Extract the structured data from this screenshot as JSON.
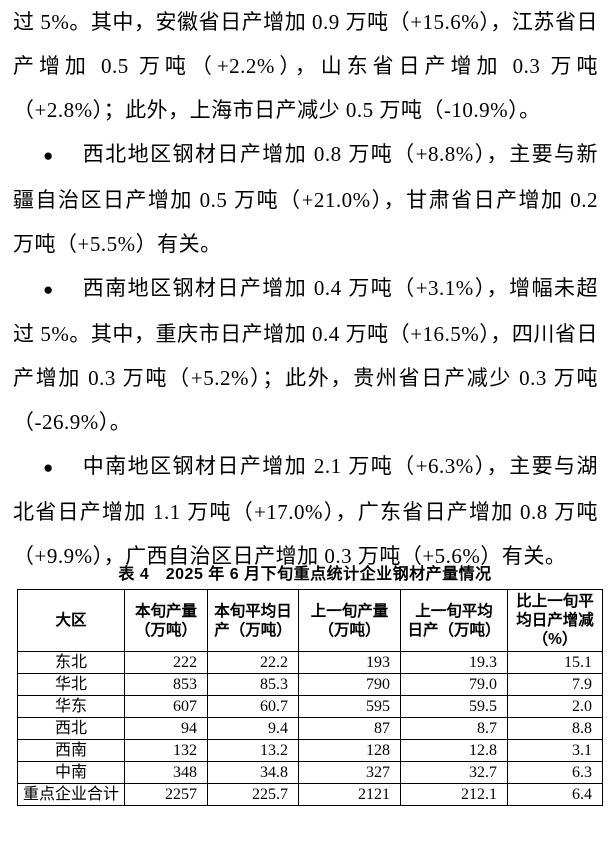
{
  "body": {
    "paragraphs": [
      {
        "bullet": "",
        "text": "过 5%。其中，安徽省日产增加 0.9 万吨（+15.6%），江苏省日产增加 0.5 万吨（+2.2%），山东省日产增加 0.3 万吨（+2.8%）；此外，上海市日产减少 0.5 万吨（-10.9%）。"
      },
      {
        "bullet": "●",
        "text": "西北地区钢材日产增加 0.8 万吨（+8.8%），主要与新疆自治区日产增加 0.5 万吨（+21.0%），甘肃省日产增加 0.2 万吨（+5.5%）有关。"
      },
      {
        "bullet": "●",
        "text": "西南地区钢材日产增加 0.4 万吨（+3.1%），增幅未超过 5%。其中，重庆市日产增加 0.4 万吨（+16.5%），四川省日产增加 0.3 万吨（+5.2%）；此外，贵州省日产减少 0.3 万吨（-26.9%）。"
      },
      {
        "bullet": "●",
        "text": "中南地区钢材日产增加 2.1 万吨（+6.3%），主要与湖北省日产增加 1.1 万吨（+17.0%），广东省日产增加 0.8 万吨（+9.9%），广西自治区日产增加 0.3 万吨（+5.6%）有关。"
      }
    ]
  },
  "table": {
    "caption": "表 4　2025 年 6 月下旬重点统计企业钢材产量情况",
    "headers": [
      "大区",
      "本旬产量\n（万吨）",
      "本旬平均日\n产（万吨）",
      "上一旬产量\n（万吨）",
      "上一旬平均\n日产（万吨）",
      "比上一旬平\n均日产增减\n（%）"
    ],
    "rows": [
      [
        "东北",
        "222",
        "22.2",
        "193",
        "19.3",
        "15.1"
      ],
      [
        "华北",
        "853",
        "85.3",
        "790",
        "79.0",
        "7.9"
      ],
      [
        "华东",
        "607",
        "60.7",
        "595",
        "59.5",
        "2.0"
      ],
      [
        "西北",
        "94",
        "9.4",
        "87",
        "8.7",
        "8.8"
      ],
      [
        "西南",
        "132",
        "13.2",
        "128",
        "12.8",
        "3.1"
      ],
      [
        "中南",
        "348",
        "34.8",
        "327",
        "32.7",
        "6.3"
      ],
      [
        "重点企业合计",
        "2257",
        "225.7",
        "2121",
        "212.1",
        "6.4"
      ]
    ],
    "colors": {
      "border": "#000000",
      "text": "#000000",
      "background": "#ffffff"
    }
  }
}
